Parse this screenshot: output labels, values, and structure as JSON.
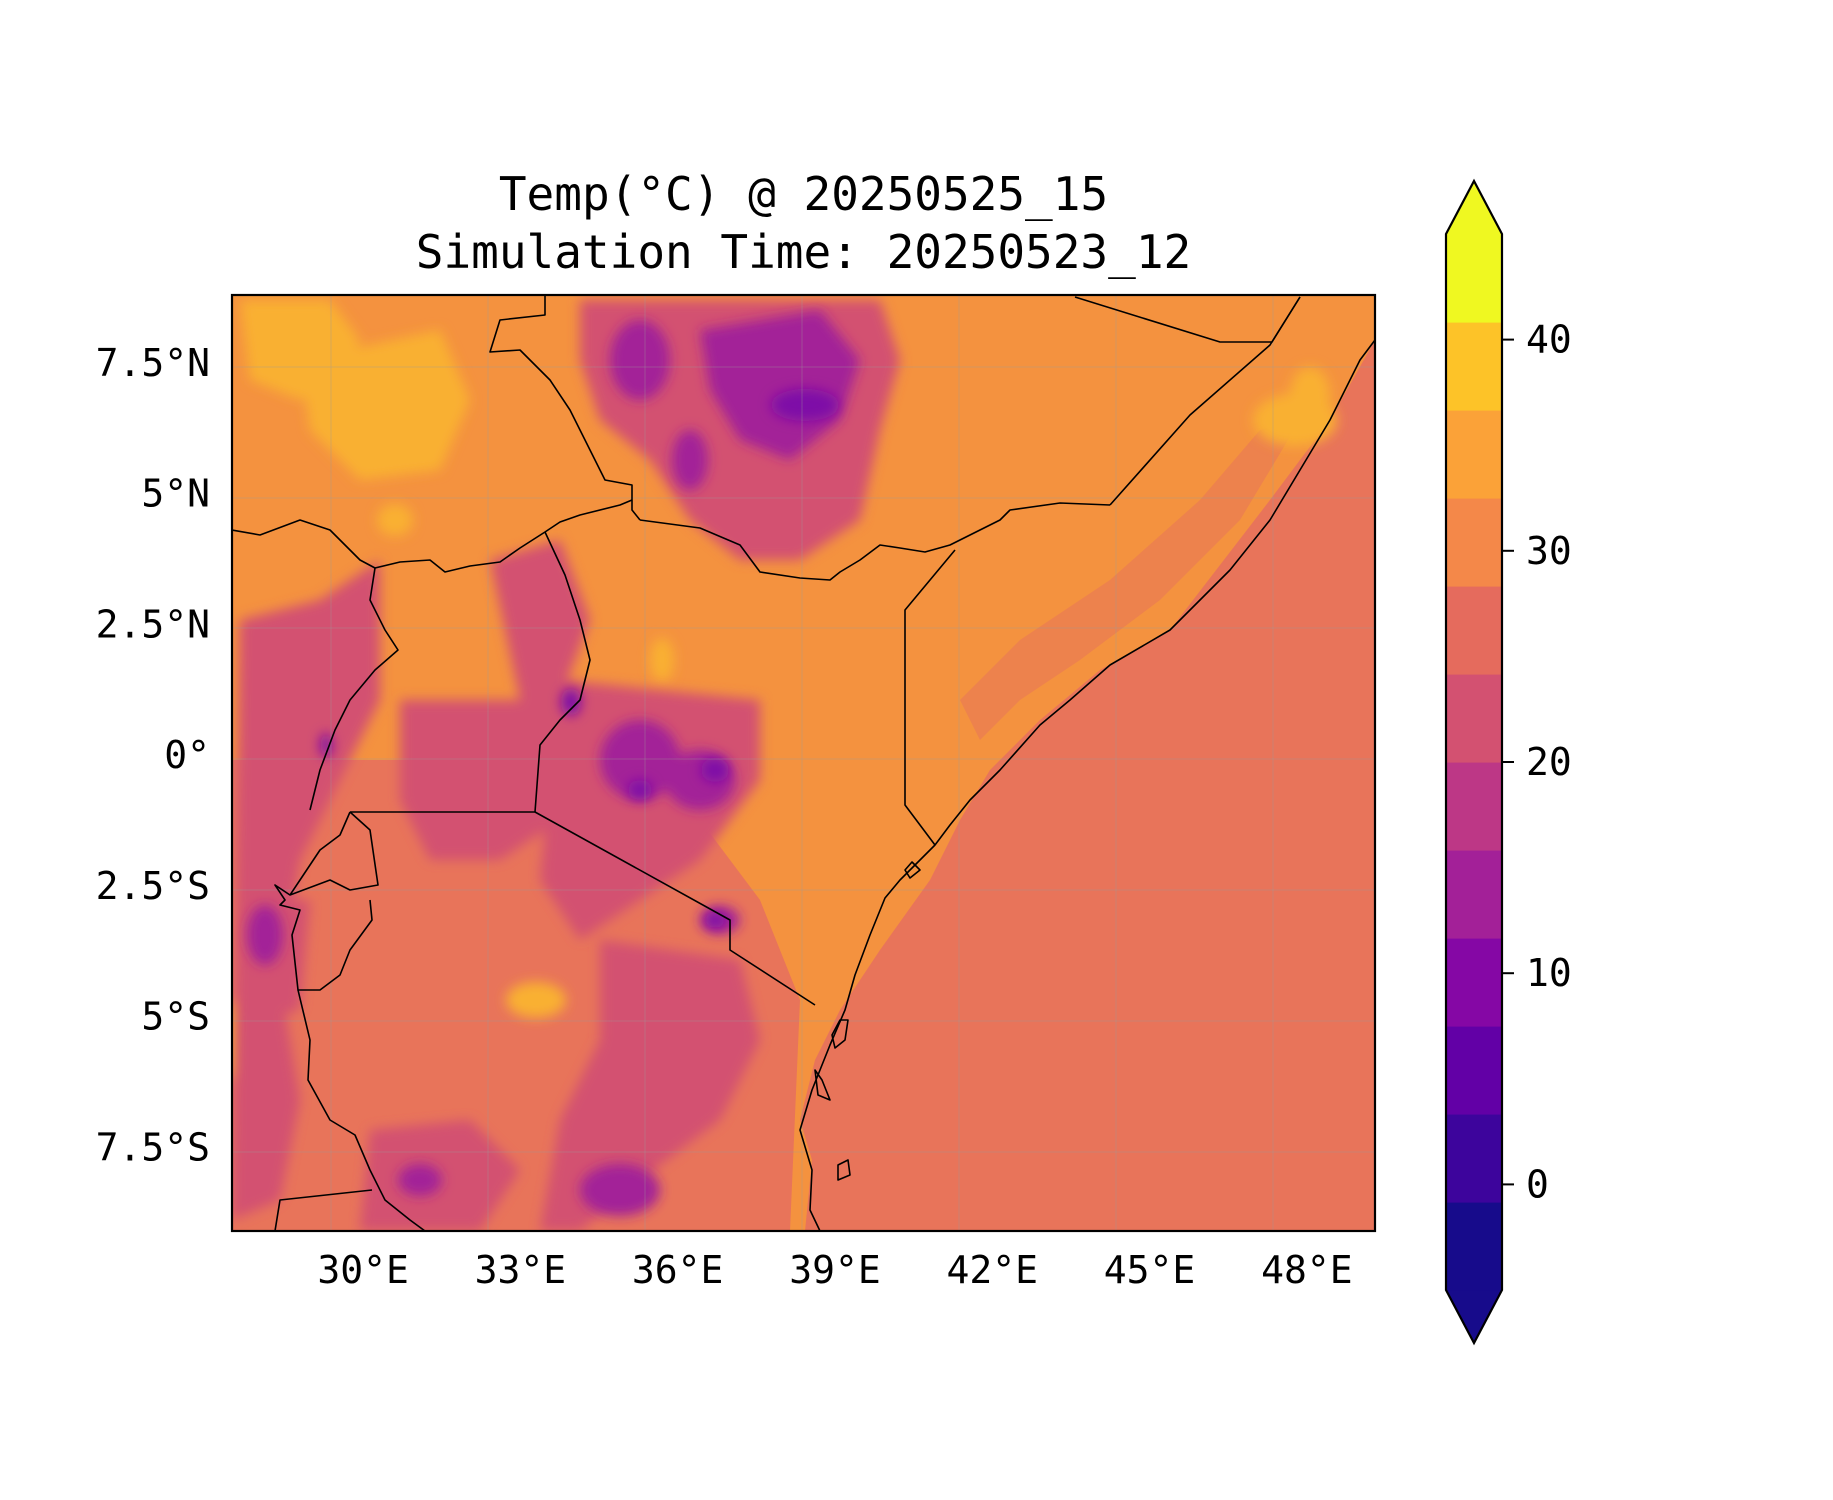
{
  "title": {
    "line1": "Temp(°C) @ 20250525_15",
    "line2": "Simulation Time: 20250523_12"
  },
  "map": {
    "variable": "Temperature",
    "units": "°C",
    "extent": {
      "lon_min": 27.5,
      "lon_max": 49.3,
      "lat_min": -9.1,
      "lat_max": 8.8
    },
    "ocean_value_c": 27,
    "gridlines": true,
    "x_ticks": [
      {
        "lon": 30,
        "label": "30°E"
      },
      {
        "lon": 33,
        "label": "33°E"
      },
      {
        "lon": 36,
        "label": "36°E"
      },
      {
        "lon": 39,
        "label": "39°E"
      },
      {
        "lon": 42,
        "label": "42°E"
      },
      {
        "lon": 45,
        "label": "45°E"
      },
      {
        "lon": 48,
        "label": "48°E"
      }
    ],
    "y_ticks": [
      {
        "lat": 7.5,
        "label": "7.5°N"
      },
      {
        "lat": 5,
        "label": "5°N"
      },
      {
        "lat": 2.5,
        "label": "2.5°N"
      },
      {
        "lat": 0,
        "label": "0°"
      },
      {
        "lat": -2.5,
        "label": "2.5°S"
      },
      {
        "lat": -5,
        "label": "5°S"
      },
      {
        "lat": -7.5,
        "label": "7.5°S"
      }
    ]
  },
  "colorbar": {
    "vmin": -5,
    "vmax": 45,
    "extend": "both",
    "colors": [
      "#170b8b",
      "#3d049c",
      "#6200a6",
      "#8507a5",
      "#a32098",
      "#bd3786",
      "#d35171",
      "#e56b5d",
      "#f48849",
      "#fba238",
      "#fdc328",
      "#eff821"
    ],
    "ticks": [
      {
        "value": 0,
        "label": "0"
      },
      {
        "value": 10,
        "label": "10"
      },
      {
        "value": 20,
        "label": "20"
      },
      {
        "value": 30,
        "label": "30"
      },
      {
        "value": 40,
        "label": "40"
      }
    ]
  },
  "colors": {
    "ocean": "#e8745a",
    "warm_land": "#f4923f",
    "hot_land": "#f9b030",
    "mid_land": "#d35171",
    "cool": "#a32098",
    "cold": "#7e10a7",
    "border": "#000000"
  }
}
